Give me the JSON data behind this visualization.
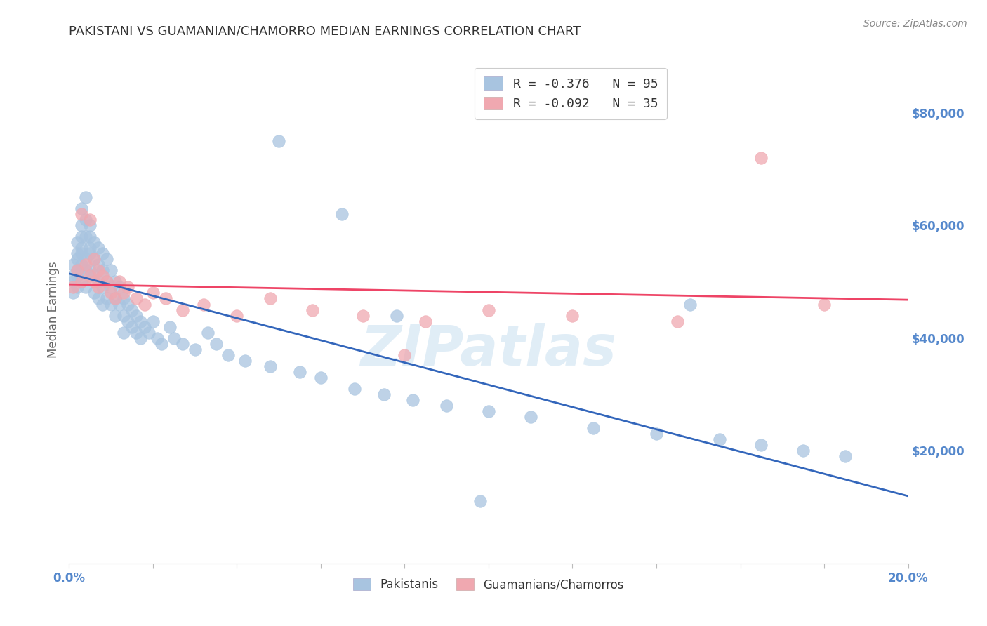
{
  "title": "PAKISTANI VS GUAMANIAN/CHAMORRO MEDIAN EARNINGS CORRELATION CHART",
  "source": "Source: ZipAtlas.com",
  "ylabel": "Median Earnings",
  "xlim": [
    0.0,
    0.2
  ],
  "ylim": [
    0,
    90000
  ],
  "yticks": [
    20000,
    40000,
    60000,
    80000
  ],
  "ytick_labels": [
    "$20,000",
    "$40,000",
    "$60,000",
    "$80,000"
  ],
  "xticks": [
    0.0,
    0.02,
    0.04,
    0.06,
    0.08,
    0.1,
    0.12,
    0.14,
    0.16,
    0.18,
    0.2
  ],
  "xtick_labels": [
    "0.0%",
    "",
    "",
    "",
    "",
    "",
    "",
    "",
    "",
    "",
    "20.0%"
  ],
  "watermark": "ZIPatlas",
  "legend_blue_label": "Pakistanis",
  "legend_pink_label": "Guamanians/Chamorros",
  "blue_R": "-0.376",
  "blue_N": "95",
  "pink_R": "-0.092",
  "pink_N": "35",
  "blue_color": "#a8c4e0",
  "pink_color": "#f0a8b0",
  "blue_line_color": "#3366bb",
  "pink_line_color": "#ee4466",
  "background_color": "#ffffff",
  "grid_color": "#dddddd",
  "title_color": "#333333",
  "axis_label_color": "#666666",
  "tick_label_color": "#5588cc",
  "source_color": "#888888",
  "blue_x": [
    0.001,
    0.001,
    0.001,
    0.001,
    0.002,
    0.002,
    0.002,
    0.002,
    0.002,
    0.002,
    0.003,
    0.003,
    0.003,
    0.003,
    0.003,
    0.003,
    0.003,
    0.004,
    0.004,
    0.004,
    0.004,
    0.004,
    0.004,
    0.005,
    0.005,
    0.005,
    0.005,
    0.005,
    0.006,
    0.006,
    0.006,
    0.006,
    0.007,
    0.007,
    0.007,
    0.007,
    0.008,
    0.008,
    0.008,
    0.008,
    0.009,
    0.009,
    0.009,
    0.01,
    0.01,
    0.01,
    0.011,
    0.011,
    0.011,
    0.012,
    0.012,
    0.013,
    0.013,
    0.013,
    0.014,
    0.014,
    0.015,
    0.015,
    0.016,
    0.016,
    0.017,
    0.017,
    0.018,
    0.019,
    0.02,
    0.021,
    0.022,
    0.024,
    0.025,
    0.027,
    0.03,
    0.033,
    0.035,
    0.038,
    0.042,
    0.048,
    0.055,
    0.06,
    0.068,
    0.075,
    0.082,
    0.09,
    0.1,
    0.11,
    0.125,
    0.14,
    0.155,
    0.165,
    0.175,
    0.185,
    0.05,
    0.065,
    0.078,
    0.148,
    0.098
  ],
  "blue_y": [
    50000,
    53000,
    48000,
    51000,
    54000,
    52000,
    57000,
    49000,
    55000,
    51000,
    56000,
    53000,
    58000,
    50000,
    63000,
    60000,
    55000,
    65000,
    61000,
    58000,
    54000,
    52000,
    49000,
    58000,
    55000,
    52000,
    60000,
    56000,
    57000,
    54000,
    51000,
    48000,
    56000,
    53000,
    50000,
    47000,
    55000,
    52000,
    49000,
    46000,
    54000,
    50000,
    47000,
    52000,
    49000,
    46000,
    50000,
    47000,
    44000,
    49000,
    46000,
    47000,
    44000,
    41000,
    46000,
    43000,
    45000,
    42000,
    44000,
    41000,
    43000,
    40000,
    42000,
    41000,
    43000,
    40000,
    39000,
    42000,
    40000,
    39000,
    38000,
    41000,
    39000,
    37000,
    36000,
    35000,
    34000,
    33000,
    31000,
    30000,
    29000,
    28000,
    27000,
    26000,
    24000,
    23000,
    22000,
    21000,
    20000,
    19000,
    75000,
    62000,
    44000,
    46000,
    11000
  ],
  "pink_x": [
    0.001,
    0.002,
    0.003,
    0.003,
    0.004,
    0.005,
    0.005,
    0.006,
    0.006,
    0.007,
    0.007,
    0.008,
    0.009,
    0.01,
    0.011,
    0.012,
    0.013,
    0.014,
    0.016,
    0.018,
    0.02,
    0.023,
    0.027,
    0.032,
    0.04,
    0.048,
    0.058,
    0.07,
    0.085,
    0.1,
    0.12,
    0.145,
    0.165,
    0.18,
    0.08
  ],
  "pink_y": [
    49000,
    52000,
    62000,
    50000,
    53000,
    51000,
    61000,
    50000,
    54000,
    52000,
    49000,
    51000,
    50000,
    48000,
    47000,
    50000,
    48000,
    49000,
    47000,
    46000,
    48000,
    47000,
    45000,
    46000,
    44000,
    47000,
    45000,
    44000,
    43000,
    45000,
    44000,
    43000,
    72000,
    46000,
    37000
  ]
}
